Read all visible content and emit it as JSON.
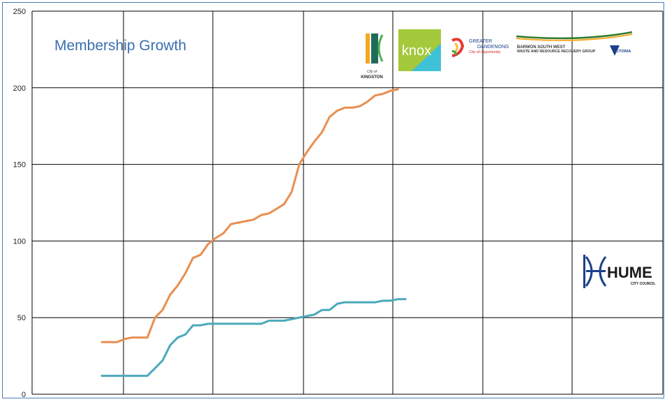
{
  "chart_data": {
    "type": "line",
    "title": "Membership Growth",
    "xlabel": "",
    "ylabel": "",
    "ylim": [
      0,
      250
    ],
    "yticks": [
      0,
      50,
      100,
      150,
      200,
      250
    ],
    "grid": true,
    "legend": "none",
    "x": [
      1,
      2,
      3,
      4,
      5,
      6,
      7,
      8,
      9,
      10,
      11,
      12,
      13,
      14,
      15,
      16,
      17,
      18,
      19,
      20,
      21,
      22,
      23,
      24,
      25,
      26,
      27,
      28,
      29,
      30,
      31,
      32,
      33,
      34,
      35,
      36,
      37,
      38,
      39,
      40,
      41,
      42,
      43,
      44,
      45,
      46,
      47,
      48,
      49,
      50,
      51,
      52,
      53,
      54,
      55,
      56,
      57,
      58,
      59,
      60,
      61,
      62,
      63,
      64,
      65,
      66,
      67,
      68
    ],
    "series": [
      {
        "color": "#e98e4f",
        "values": [
          34,
          34,
          34,
          36,
          37,
          37,
          37,
          50,
          55,
          65,
          71,
          79,
          89,
          91,
          98,
          102,
          105,
          111,
          112,
          113,
          114,
          117,
          118,
          121,
          124,
          132,
          150,
          158,
          165,
          171,
          181,
          185,
          187,
          187,
          188,
          191,
          195,
          196,
          198,
          199,
          null,
          null,
          null,
          null,
          null,
          null,
          null,
          null,
          null,
          null,
          null,
          null,
          null,
          null,
          null,
          null,
          null,
          null,
          null,
          null,
          null,
          null,
          null,
          null,
          null,
          null,
          null,
          null
        ]
      },
      {
        "color": "#4ba9bb",
        "values": [
          12,
          12,
          12,
          12,
          12,
          12,
          12,
          17,
          22,
          32,
          37,
          39,
          45,
          45,
          46,
          46,
          46,
          46,
          46,
          46,
          46,
          46,
          48,
          48,
          48,
          49,
          50,
          51,
          52,
          55,
          55,
          59,
          60,
          60,
          60,
          60,
          60,
          61,
          61,
          62,
          62,
          null,
          null,
          null,
          null,
          null,
          null,
          null,
          null,
          null,
          null,
          null,
          null,
          null,
          null,
          null,
          null,
          null,
          null,
          null,
          null,
          null,
          null,
          null,
          null,
          null,
          null,
          null
        ]
      }
    ]
  },
  "logos": {
    "kingston": {
      "line1": "City of",
      "line2": "KINGSTON"
    },
    "knox": {
      "text": "knox",
      "color": "#a4c93b"
    },
    "dandenong": {
      "line1": "GREATER",
      "line2": "DANDENONG",
      "tagline": "City of Opportunity"
    },
    "barwon": {
      "line1": "BARWON SOUTH WEST",
      "line2": "WASTE AND RESOURCE RECOVERY GROUP",
      "victoria": "VICTORIA"
    },
    "hume": {
      "name": "HUME",
      "sub": "CITY COUNCIL"
    }
  }
}
